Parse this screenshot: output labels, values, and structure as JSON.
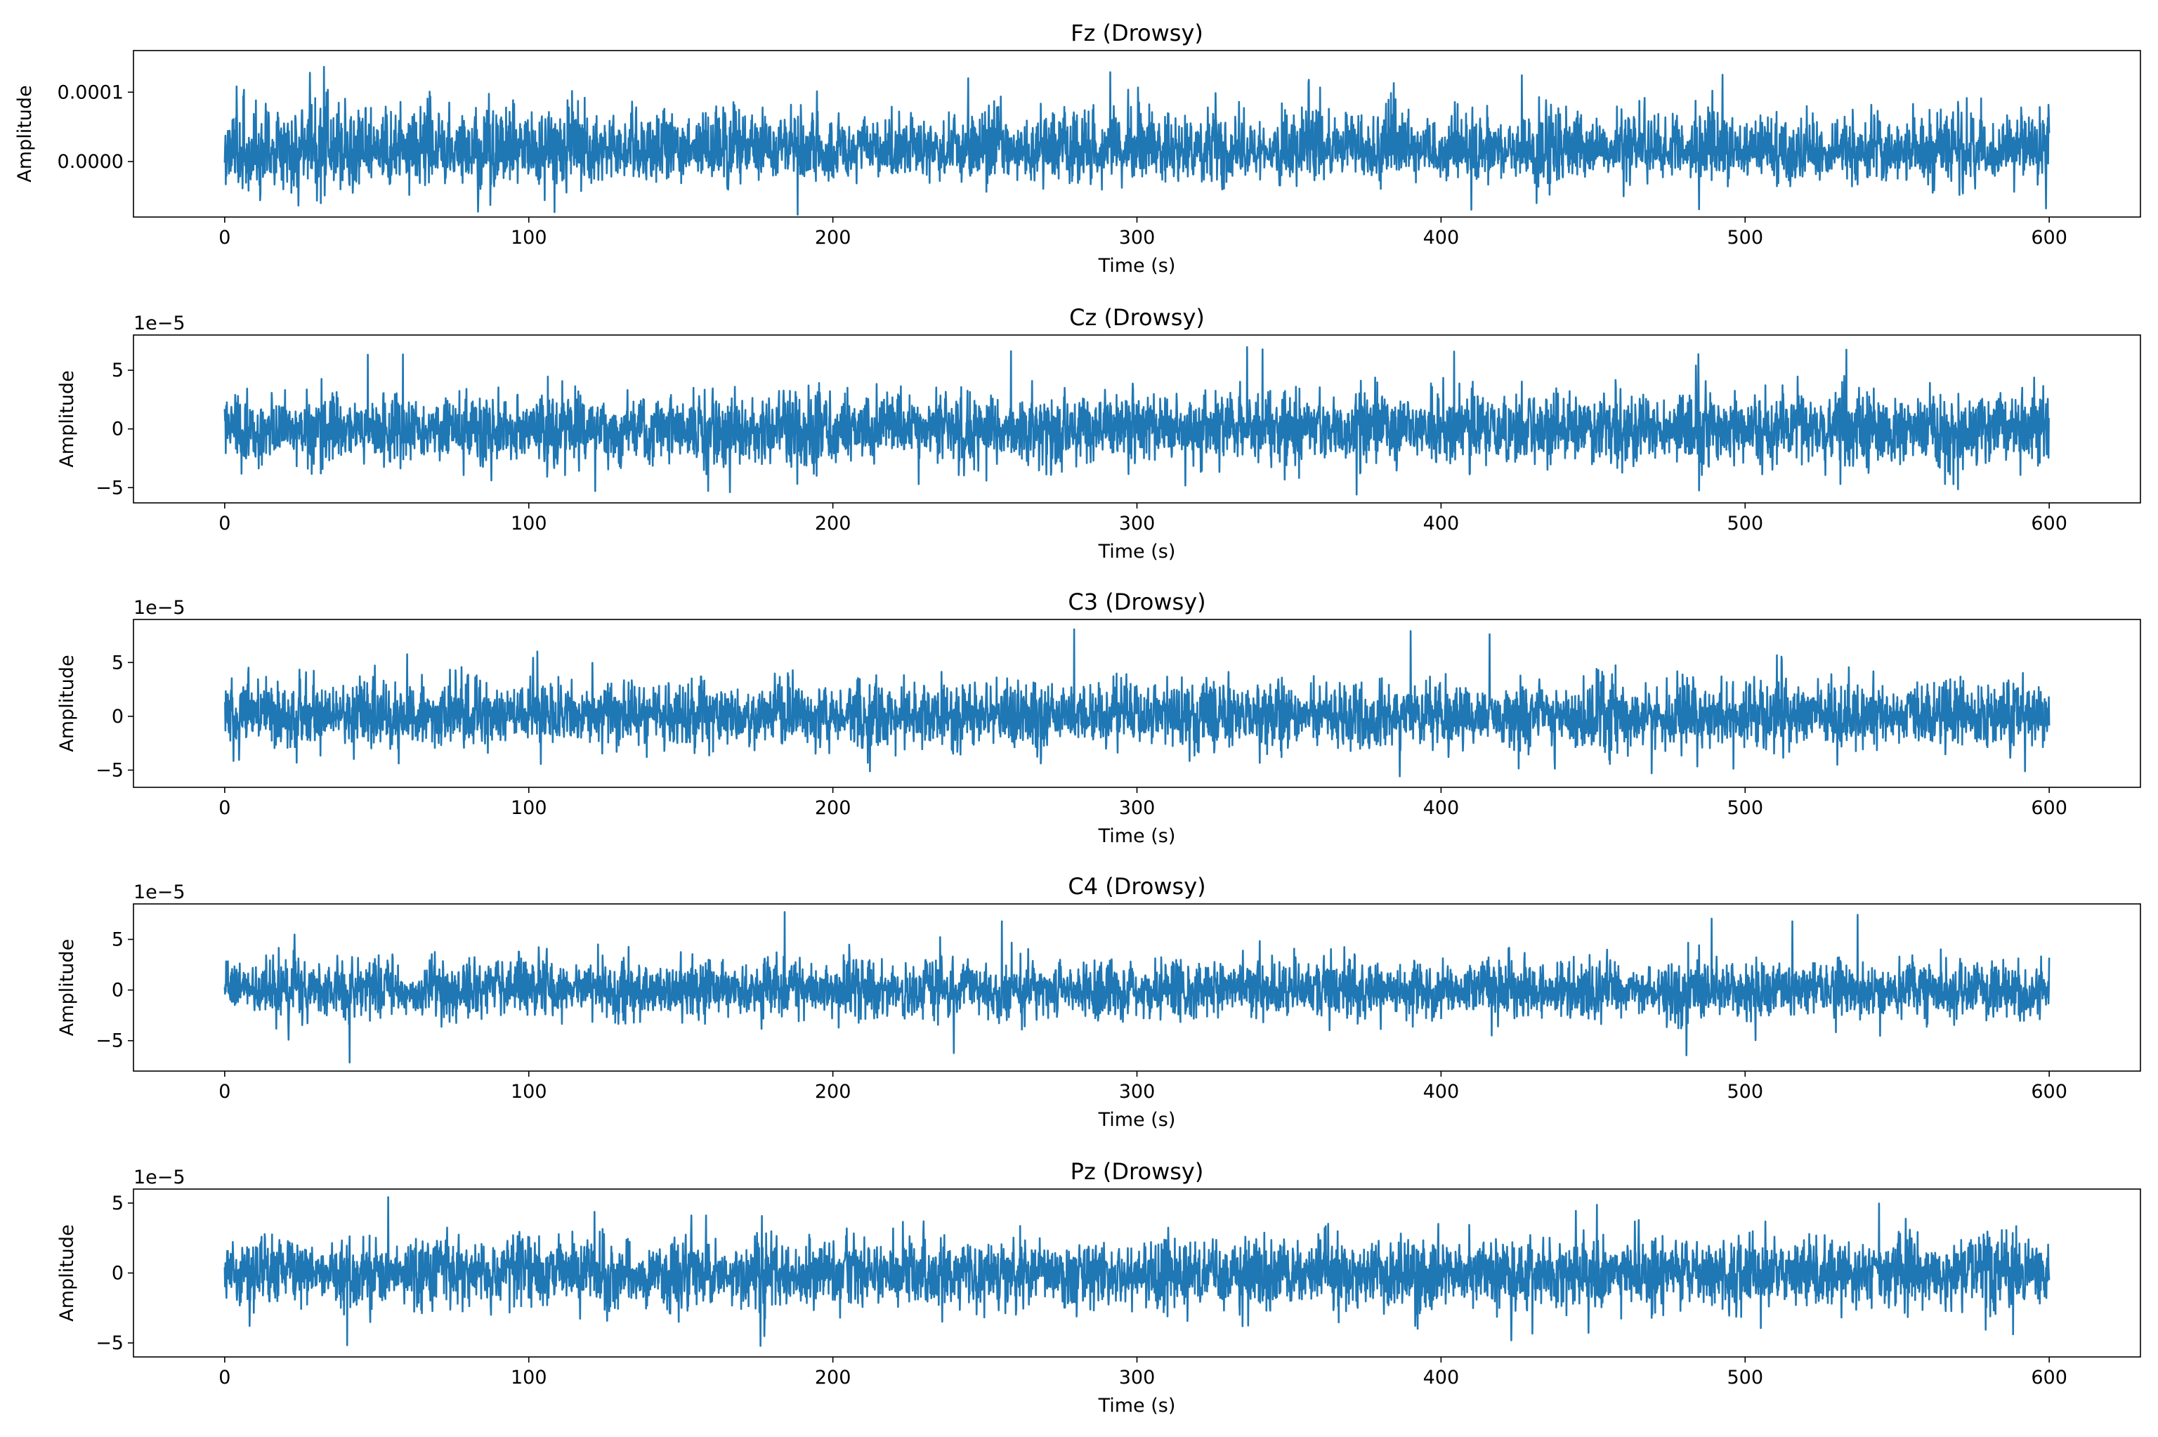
{
  "chart_data": [
    {
      "type": "line",
      "title": "Fz (Drowsy)",
      "xlabel": "Time (s)",
      "ylabel": "Amplitude",
      "offset_text": "",
      "x_range": [
        0,
        600
      ],
      "xlim": [
        -30,
        630
      ],
      "ylim": [
        -8e-05,
        0.00016
      ],
      "xticks": [
        0,
        100,
        200,
        300,
        400,
        500,
        600
      ],
      "yticks": [
        0.0,
        0.0001
      ],
      "ytick_labels": [
        "0.0000",
        "0.0001"
      ],
      "series": [
        {
          "values_summary": {
            "baseline": 1.5e-05,
            "typical_max": 9e-05,
            "typical_min": -4e-05,
            "peak_max": 0.00014,
            "peak_min": -8e-05
          }
        }
      ],
      "color": "#1f77b4",
      "grid": false
    },
    {
      "type": "line",
      "title": "Cz (Drowsy)",
      "xlabel": "Time (s)",
      "ylabel": "Amplitude",
      "offset_text": "1e−5",
      "x_range": [
        0,
        600
      ],
      "xlim": [
        -30,
        630
      ],
      "ylim": [
        -6.3,
        8.0
      ],
      "xticks": [
        0,
        100,
        200,
        300,
        400,
        500,
        600
      ],
      "yticks": [
        -5,
        0,
        5
      ],
      "ytick_labels": [
        "−5",
        "0",
        "5"
      ],
      "series": [
        {
          "values_summary": {
            "baseline": 0,
            "typical_max": 4.0,
            "typical_min": -4.0,
            "peak_max": 7.3,
            "peak_min": -5.6
          }
        }
      ],
      "color": "#1f77b4",
      "grid": false
    },
    {
      "type": "line",
      "title": "C3 (Drowsy)",
      "xlabel": "Time (s)",
      "ylabel": "Amplitude",
      "offset_text": "1e−5",
      "x_range": [
        0,
        600
      ],
      "xlim": [
        -30,
        630
      ],
      "ylim": [
        -6.6,
        9.0
      ],
      "xticks": [
        0,
        100,
        200,
        300,
        400,
        500,
        600
      ],
      "yticks": [
        -5,
        0,
        5
      ],
      "ytick_labels": [
        "−5",
        "0",
        "5"
      ],
      "series": [
        {
          "values_summary": {
            "baseline": 0,
            "typical_max": 4.2,
            "typical_min": -3.8,
            "peak_max": 8.2,
            "peak_min": -5.9
          }
        }
      ],
      "color": "#1f77b4",
      "grid": false
    },
    {
      "type": "line",
      "title": "C4 (Drowsy)",
      "xlabel": "Time (s)",
      "ylabel": "Amplitude",
      "offset_text": "1e−5",
      "x_range": [
        0,
        600
      ],
      "xlim": [
        -30,
        630
      ],
      "ylim": [
        -8.0,
        8.5
      ],
      "xticks": [
        0,
        100,
        200,
        300,
        400,
        500,
        600
      ],
      "yticks": [
        -5,
        0,
        5
      ],
      "ytick_labels": [
        "−5",
        "0",
        "5"
      ],
      "series": [
        {
          "values_summary": {
            "baseline": 0,
            "typical_max": 3.8,
            "typical_min": -3.6,
            "peak_max": 7.8,
            "peak_min": -7.3
          }
        }
      ],
      "color": "#1f77b4",
      "grid": false
    },
    {
      "type": "line",
      "title": "Pz (Drowsy)",
      "xlabel": "Time (s)",
      "ylabel": "Amplitude",
      "offset_text": "1e−5",
      "x_range": [
        0,
        600
      ],
      "xlim": [
        -30,
        630
      ],
      "ylim": [
        -6.0,
        6.0
      ],
      "xticks": [
        0,
        100,
        200,
        300,
        400,
        500,
        600
      ],
      "yticks": [
        -5,
        0,
        5
      ],
      "ytick_labels": [
        "−5",
        "0",
        "5"
      ],
      "series": [
        {
          "values_summary": {
            "baseline": 0,
            "typical_max": 3.2,
            "typical_min": -3.4,
            "peak_max": 5.5,
            "peak_min": -5.3
          }
        }
      ],
      "color": "#1f77b4",
      "grid": false
    }
  ]
}
